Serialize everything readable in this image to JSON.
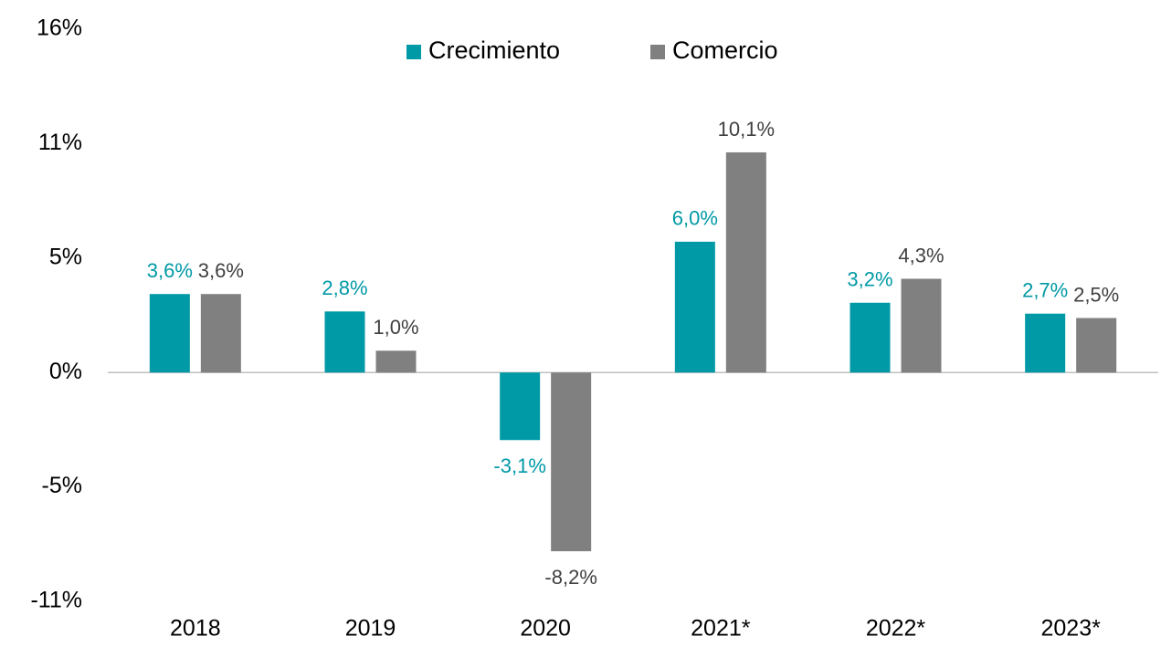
{
  "chart_data": {
    "type": "bar",
    "categories": [
      "2018",
      "2019",
      "2020",
      "2021*",
      "2022*",
      "2023*"
    ],
    "series": [
      {
        "name": "Crecimiento",
        "color": "#0099a6",
        "values": [
          3.6,
          2.8,
          -3.1,
          6.0,
          3.2,
          2.7
        ],
        "value_labels": [
          "3,6%",
          "2,8%",
          "-3,1%",
          "6,0%",
          "3,2%",
          "2,7%"
        ]
      },
      {
        "name": "Comercio",
        "color": "#808080",
        "values": [
          3.6,
          1.0,
          -8.2,
          10.1,
          4.3,
          2.5
        ],
        "value_labels": [
          "3,6%",
          "1,0%",
          "-8,2%",
          "10,1%",
          "4,3%",
          "2,5%"
        ]
      }
    ],
    "ylim": [
      -10.5,
      15.75
    ],
    "yticks": [
      {
        "value": -10.5,
        "label": "-11%"
      },
      {
        "value": -5.25,
        "label": "-5%"
      },
      {
        "value": 0,
        "label": "0%"
      },
      {
        "value": 5.25,
        "label": "5%"
      },
      {
        "value": 10.5,
        "label": "11%"
      },
      {
        "value": 15.75,
        "label": "16%"
      }
    ],
    "legend": "top",
    "grid": false
  }
}
